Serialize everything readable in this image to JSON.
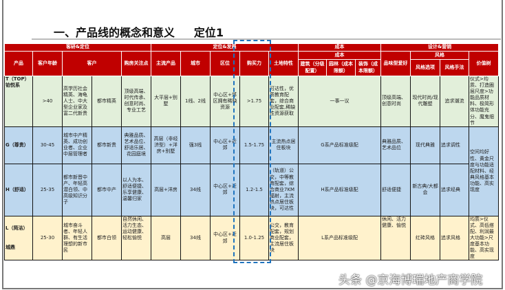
{
  "title": "一、产品线的概念和意义     定位1",
  "header": {
    "groups": [
      "客研&定位",
      "定位&发展",
      "成本",
      "设计&营销"
    ],
    "cols": [
      "产品",
      "客户年龄",
      "客户",
      "购房关注点",
      "主流产品",
      "城市",
      "区位",
      "购买力",
      "土地特性"
    ],
    "cost_sub": "成本",
    "cost_cols": [
      "建筑（分级配置）",
      "园林（成本限额）",
      "装饰（成本限额）"
    ],
    "taste": "品味型爱好",
    "style": "风格",
    "style_cols": [
      "风格选项",
      "风格手法"
    ],
    "value": "价值树"
  },
  "rows": [
    {
      "product": "T（TOP）铂悦系",
      "age": ">40",
      "customer": "高学历社会精英、海龟人士、中大型企业家及富二代新贵",
      "customer_tag": "都市精英",
      "focus": "顶级高端、时代传承、创意时尚、专业工艺",
      "main_product": "大平层+别墅",
      "city": "1线、2线",
      "location": "中心区+郊区拥有稀缺资源",
      "power": ">1.75",
      "land": "可达性，优质教育配套，综合商业配套,稀缺性资源获取",
      "cost": "一事一议",
      "taste": "顶级高端、创意时尚",
      "style_option": "现代时尚/现代雕塑",
      "style_method": "追求潮流",
      "value": "仪式>均质、打造圈层尺度>功能品质材料、极简形体功能充分、魔鬼细节"
    },
    {
      "product": "G（尊贵）",
      "age": "30-45",
      "customer": "城市中产精英、成功创业者、企业中层管理者",
      "customer_tag": "都市新贵",
      "focus": "典雅品质、艺术品位、舒适乐居、花园庭境",
      "main_product": "高层（非经济型）+洋房+别墅",
      "city": "强3线",
      "location": "中心区+近郊",
      "power": "1.5-1.75",
      "land": "主流热点居住板块",
      "cost": "G系产品标准级配",
      "taste": "典雅品质、艺术品位",
      "style_option": "现代典雅",
      "style_method": "追求调性",
      "value": "空间均好性、黄金尺度与功能适配材料、经典风格基本功能、高实现度"
    },
    {
      "product": "H（舒适）",
      "age": "25-35",
      "customer": "都市新晋中产、年轻高潜白领、中高级知识分子",
      "customer_tag": "都市中产",
      "focus": "以人为本、舒适便捷、乐享健康、温馨归家",
      "main_product": "高层+洋房",
      "city": "34线",
      "location": "中心区+近郊",
      "power": "1.2-1.5",
      "land": "（轨道）公交，中等教育配套，综合商业7KM辐射，主流热点居住板块，可达性",
      "cost": "H系产品标准级配",
      "taste": "舒适便捷",
      "style_option": "新古典/大都会",
      "style_method": "追求经典"
    },
    {
      "product": "L（简洁）",
      "product_sub": "城鼎",
      "age": "25-30",
      "customer": "城市奋斗者、年轻人群、有生活理想的新市民",
      "customer_tag": "都市白领",
      "focus": "自然休闲、活力生态、运动健康、轻松愉悦",
      "main_product": "高层",
      "city": "34线",
      "location": "中心区+近郊",
      "power": "1.0-1.25",
      "land": "公交，教育配套，规划商业配套，主流居住板块",
      "cost": "L系产品标准级配",
      "taste": "休闲、活力健康、愉悦",
      "style_option": "红砖风格",
      "style_method": "追求风格",
      "value": "均质>仪式、高低搭配、利润最大功能>尺度基本功能、高实现度"
    }
  ],
  "watermark": "头条 @京海博瑞地产商学院",
  "colors": {
    "header": "#c00000",
    "row_top": "#e2efda",
    "row_mid": "#bdd7ee",
    "row_low": "#fff2cc",
    "highlight": "#1e73be"
  }
}
